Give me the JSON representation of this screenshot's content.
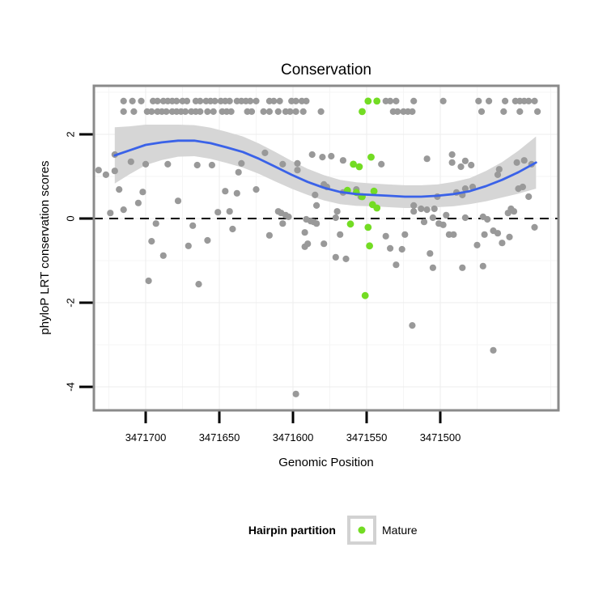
{
  "chart_data": {
    "type": "scatter",
    "title": "Conservation",
    "xlabel": "Genomic Position",
    "ylabel": "phyloP LRT conservation scores",
    "x_reversed": true,
    "x_ticks": [
      3471700,
      3471650,
      3471600,
      3471550,
      3471500
    ],
    "x_minor_ticks": [
      3471725,
      3471675,
      3471625,
      3471575,
      3471525,
      3471475,
      3471425
    ],
    "x_domain": [
      3471735,
      3471420
    ],
    "y_ticks": [
      2,
      0,
      -2,
      -4
    ],
    "y_minor_ticks": [
      3,
      1,
      -1,
      -3
    ],
    "y_domain": [
      -4.56,
      3.15
    ],
    "hline": {
      "y": 0,
      "style": "dashed",
      "color": "#000000"
    },
    "colors": {
      "background_points": "#999999",
      "mature_points": "#73DC23",
      "smooth_line": "#3A62E8",
      "confidence_band": "#D6D6D6",
      "panel_border": "#8A8A8A",
      "grid_major": "#ECECEC",
      "grid_minor": "#F5F5F5",
      "legend_key_border": "#D2D2D2"
    },
    "series": [
      {
        "name": "background",
        "color": "#999999",
        "points": [
          [
            3471715,
            2.79
          ],
          [
            3471709,
            2.79
          ],
          [
            3471703,
            2.79
          ],
          [
            3471695,
            2.79
          ],
          [
            3471692,
            2.79
          ],
          [
            3471688,
            2.79
          ],
          [
            3471685,
            2.79
          ],
          [
            3471682,
            2.79
          ],
          [
            3471679,
            2.79
          ],
          [
            3471675,
            2.79
          ],
          [
            3471672,
            2.79
          ],
          [
            3471666,
            2.79
          ],
          [
            3471663,
            2.79
          ],
          [
            3471659,
            2.79
          ],
          [
            3471656,
            2.79
          ],
          [
            3471653,
            2.79
          ],
          [
            3471649,
            2.79
          ],
          [
            3471646,
            2.79
          ],
          [
            3471643,
            2.79
          ],
          [
            3471638,
            2.79
          ],
          [
            3471635,
            2.79
          ],
          [
            3471632,
            2.79
          ],
          [
            3471629,
            2.79
          ],
          [
            3471625,
            2.79
          ],
          [
            3471616,
            2.79
          ],
          [
            3471613,
            2.79
          ],
          [
            3471609,
            2.79
          ],
          [
            3471601,
            2.79
          ],
          [
            3471598,
            2.79
          ],
          [
            3471594,
            2.79
          ],
          [
            3471591,
            2.79
          ],
          [
            3471537,
            2.79
          ],
          [
            3471534,
            2.79
          ],
          [
            3471530,
            2.79
          ],
          [
            3471518,
            2.79
          ],
          [
            3471498,
            2.79
          ],
          [
            3471474,
            2.79
          ],
          [
            3471467,
            2.79
          ],
          [
            3471456,
            2.79
          ],
          [
            3471449,
            2.79
          ],
          [
            3471446,
            2.79
          ],
          [
            3471443,
            2.79
          ],
          [
            3471440,
            2.79
          ],
          [
            3471436,
            2.79
          ],
          [
            3471715,
            2.54
          ],
          [
            3471708,
            2.54
          ],
          [
            3471699,
            2.54
          ],
          [
            3471696,
            2.54
          ],
          [
            3471692,
            2.54
          ],
          [
            3471689,
            2.54
          ],
          [
            3471686,
            2.54
          ],
          [
            3471682,
            2.54
          ],
          [
            3471679,
            2.54
          ],
          [
            3471676,
            2.54
          ],
          [
            3471673,
            2.54
          ],
          [
            3471669,
            2.54
          ],
          [
            3471666,
            2.54
          ],
          [
            3471663,
            2.54
          ],
          [
            3471658,
            2.54
          ],
          [
            3471654,
            2.54
          ],
          [
            3471648,
            2.54
          ],
          [
            3471645,
            2.54
          ],
          [
            3471642,
            2.54
          ],
          [
            3471631,
            2.54
          ],
          [
            3471628,
            2.54
          ],
          [
            3471620,
            2.54
          ],
          [
            3471616,
            2.54
          ],
          [
            3471610,
            2.54
          ],
          [
            3471605,
            2.54
          ],
          [
            3471602,
            2.54
          ],
          [
            3471598,
            2.54
          ],
          [
            3471593,
            2.54
          ],
          [
            3471581,
            2.54
          ],
          [
            3471532,
            2.54
          ],
          [
            3471529,
            2.54
          ],
          [
            3471525,
            2.54
          ],
          [
            3471522,
            2.54
          ],
          [
            3471519,
            2.54
          ],
          [
            3471472,
            2.54
          ],
          [
            3471457,
            2.54
          ],
          [
            3471446,
            2.54
          ],
          [
            3471434,
            2.54
          ],
          [
            3471721,
            1.52
          ],
          [
            3471710,
            1.35
          ],
          [
            3471732,
            1.15
          ],
          [
            3471721,
            1.13
          ],
          [
            3471727,
            1.04
          ],
          [
            3471700,
            1.29
          ],
          [
            3471685,
            1.29
          ],
          [
            3471665,
            1.27
          ],
          [
            3471655,
            1.27
          ],
          [
            3471635,
            1.31
          ],
          [
            3471637,
            1.1
          ],
          [
            3471718,
            0.69
          ],
          [
            3471702,
            0.63
          ],
          [
            3471646,
            0.65
          ],
          [
            3471638,
            0.6
          ],
          [
            3471678,
            0.42
          ],
          [
            3471705,
            0.37
          ],
          [
            3471715,
            0.21
          ],
          [
            3471724,
            0.13
          ],
          [
            3471651,
            0.15
          ],
          [
            3471643,
            0.17
          ],
          [
            3471693,
            -0.12
          ],
          [
            3471668,
            -0.17
          ],
          [
            3471641,
            -0.25
          ],
          [
            3471696,
            -0.54
          ],
          [
            3471658,
            -0.52
          ],
          [
            3471671,
            -0.65
          ],
          [
            3471688,
            -0.88
          ],
          [
            3471698,
            -1.48
          ],
          [
            3471664,
            -1.56
          ],
          [
            3471619,
            1.56
          ],
          [
            3471587,
            1.52
          ],
          [
            3471580,
            1.46
          ],
          [
            3471574,
            1.48
          ],
          [
            3471566,
            1.38
          ],
          [
            3471540,
            1.29
          ],
          [
            3471607,
            1.29
          ],
          [
            3471597,
            1.31
          ],
          [
            3471597,
            1.15
          ],
          [
            3471625,
            0.69
          ],
          [
            3471579,
            0.81
          ],
          [
            3471577,
            0.75
          ],
          [
            3471566,
            0.62
          ],
          [
            3471557,
            0.69
          ],
          [
            3471554,
            0.52
          ],
          [
            3471585,
            0.56
          ],
          [
            3471584,
            0.31
          ],
          [
            3471610,
            0.17
          ],
          [
            3471608,
            0.13
          ],
          [
            3471605,
            0.08
          ],
          [
            3471603,
            0.04
          ],
          [
            3471607,
            -0.12
          ],
          [
            3471591,
            -0.02
          ],
          [
            3471588,
            -0.06
          ],
          [
            3471586,
            -0.08
          ],
          [
            3471584,
            -0.12
          ],
          [
            3471570,
            0.17
          ],
          [
            3471571,
            0.02
          ],
          [
            3471518,
            0.31
          ],
          [
            3471518,
            0.17
          ],
          [
            3471616,
            -0.4
          ],
          [
            3471592,
            -0.33
          ],
          [
            3471592,
            -0.67
          ],
          [
            3471590,
            -0.6
          ],
          [
            3471579,
            -0.6
          ],
          [
            3471568,
            -0.38
          ],
          [
            3471537,
            -0.42
          ],
          [
            3471524,
            -0.38
          ],
          [
            3471571,
            -0.92
          ],
          [
            3471564,
            -0.96
          ],
          [
            3471534,
            -0.71
          ],
          [
            3471526,
            -0.73
          ],
          [
            3471530,
            -1.1
          ],
          [
            3471519,
            -2.54
          ],
          [
            3471598,
            -4.17
          ],
          [
            3471509,
            1.42
          ],
          [
            3471492,
            1.52
          ],
          [
            3471492,
            1.33
          ],
          [
            3471486,
            1.23
          ],
          [
            3471483,
            1.37
          ],
          [
            3471479,
            1.27
          ],
          [
            3471460,
            1.17
          ],
          [
            3471461,
            1.04
          ],
          [
            3471448,
            1.33
          ],
          [
            3471443,
            1.38
          ],
          [
            3471438,
            1.29
          ],
          [
            3471502,
            0.52
          ],
          [
            3471489,
            0.62
          ],
          [
            3471485,
            0.56
          ],
          [
            3471483,
            0.71
          ],
          [
            3471478,
            0.75
          ],
          [
            3471447,
            0.71
          ],
          [
            3471444,
            0.75
          ],
          [
            3471440,
            0.52
          ],
          [
            3471513,
            0.23
          ],
          [
            3471509,
            0.21
          ],
          [
            3471504,
            0.23
          ],
          [
            3471505,
            0.02
          ],
          [
            3471511,
            -0.08
          ],
          [
            3471501,
            -0.12
          ],
          [
            3471498,
            -0.15
          ],
          [
            3471496,
            0.08
          ],
          [
            3471483,
            0.02
          ],
          [
            3471471,
            0.04
          ],
          [
            3471468,
            -0.02
          ],
          [
            3471454,
            0.13
          ],
          [
            3471452,
            0.23
          ],
          [
            3471450,
            0.17
          ],
          [
            3471436,
            -0.21
          ],
          [
            3471494,
            -0.38
          ],
          [
            3471491,
            -0.38
          ],
          [
            3471470,
            -0.38
          ],
          [
            3471464,
            -0.29
          ],
          [
            3471461,
            -0.35
          ],
          [
            3471453,
            -0.44
          ],
          [
            3471458,
            -0.58
          ],
          [
            3471475,
            -0.63
          ],
          [
            3471507,
            -0.83
          ],
          [
            3471505,
            -1.17
          ],
          [
            3471485,
            -1.17
          ],
          [
            3471471,
            -1.13
          ],
          [
            3471464,
            -3.13
          ]
        ]
      },
      {
        "name": "Mature",
        "color": "#73DC23",
        "points": [
          [
            3471549,
            2.79
          ],
          [
            3471543,
            2.79
          ],
          [
            3471553,
            2.54
          ],
          [
            3471547,
            1.46
          ],
          [
            3471559,
            1.29
          ],
          [
            3471555,
            1.23
          ],
          [
            3471563,
            0.67
          ],
          [
            3471557,
            0.62
          ],
          [
            3471545,
            0.65
          ],
          [
            3471553,
            0.52
          ],
          [
            3471546,
            0.33
          ],
          [
            3471543,
            0.25
          ],
          [
            3471561,
            -0.13
          ],
          [
            3471549,
            -0.21
          ],
          [
            3471548,
            -0.65
          ],
          [
            3471551,
            -1.83
          ]
        ]
      }
    ],
    "smooth": {
      "name": "loess fit with confidence band",
      "color": "#3A62E8",
      "band_color": "#D6D6D6",
      "points": [
        [
          3471721,
          1.5,
          0.67
        ],
        [
          3471711,
          1.62,
          0.57
        ],
        [
          3471700,
          1.75,
          0.48
        ],
        [
          3471689,
          1.81,
          0.42
        ],
        [
          3471678,
          1.85,
          0.38
        ],
        [
          3471667,
          1.85,
          0.37
        ],
        [
          3471656,
          1.79,
          0.37
        ],
        [
          3471645,
          1.69,
          0.37
        ],
        [
          3471634,
          1.58,
          0.37
        ],
        [
          3471623,
          1.42,
          0.36
        ],
        [
          3471612,
          1.23,
          0.35
        ],
        [
          3471601,
          1.04,
          0.33
        ],
        [
          3471590,
          0.87,
          0.31
        ],
        [
          3471579,
          0.73,
          0.3
        ],
        [
          3471568,
          0.63,
          0.29
        ],
        [
          3471557,
          0.58,
          0.28
        ],
        [
          3471546,
          0.56,
          0.27
        ],
        [
          3471535,
          0.54,
          0.27
        ],
        [
          3471524,
          0.52,
          0.27
        ],
        [
          3471513,
          0.52,
          0.27
        ],
        [
          3471502,
          0.54,
          0.27
        ],
        [
          3471491,
          0.58,
          0.29
        ],
        [
          3471480,
          0.65,
          0.31
        ],
        [
          3471469,
          0.77,
          0.36
        ],
        [
          3471458,
          0.92,
          0.42
        ],
        [
          3471447,
          1.1,
          0.51
        ],
        [
          3471435,
          1.33,
          0.62
        ]
      ]
    }
  },
  "legend": {
    "title": "Hairpin partition",
    "items": [
      {
        "label": "Mature",
        "color": "#73DC23"
      }
    ]
  }
}
